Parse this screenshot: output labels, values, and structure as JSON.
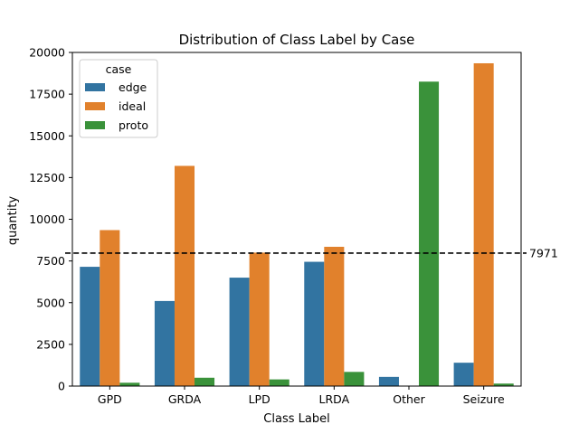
{
  "chart_data": {
    "type": "bar",
    "title": "Distribution of Class Label by Case",
    "xlabel": "Class Label",
    "ylabel": "quantity",
    "categories": [
      "GPD",
      "GRDA",
      "LPD",
      "LRDA",
      "Other",
      "Seizure"
    ],
    "series": [
      {
        "name": "edge",
        "color": "#3274a1",
        "values": [
          7150,
          5100,
          6500,
          7450,
          550,
          1400
        ]
      },
      {
        "name": "ideal",
        "color": "#e1812c",
        "values": [
          9350,
          13200,
          8000,
          8350,
          0,
          19350
        ]
      },
      {
        "name": "proto",
        "color": "#3a923a",
        "values": [
          200,
          500,
          400,
          850,
          18250,
          150
        ]
      }
    ],
    "ylim": [
      0,
      20000
    ],
    "yticks": [
      0,
      2500,
      5000,
      7500,
      10000,
      12500,
      15000,
      17500,
      20000
    ],
    "grid": false,
    "legend": {
      "title": "case",
      "placement": "top-left"
    },
    "reference_line": {
      "value": 7971,
      "label": "7971",
      "style": "dashed",
      "color": "#000000"
    }
  }
}
